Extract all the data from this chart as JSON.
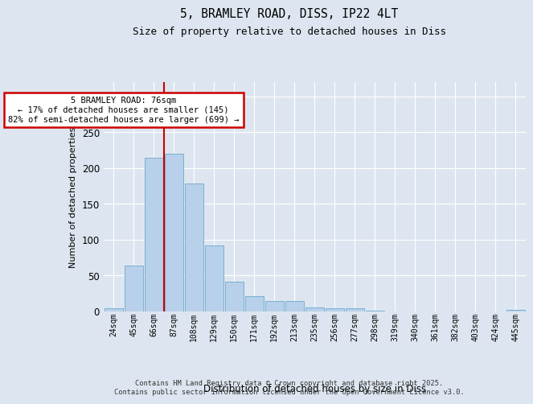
{
  "title1": "5, BRAMLEY ROAD, DISS, IP22 4LT",
  "title2": "Size of property relative to detached houses in Diss",
  "xlabel": "Distribution of detached houses by size in Diss",
  "ylabel": "Number of detached properties",
  "categories": [
    "24sqm",
    "45sqm",
    "66sqm",
    "87sqm",
    "108sqm",
    "129sqm",
    "150sqm",
    "171sqm",
    "192sqm",
    "213sqm",
    "235sqm",
    "256sqm",
    "277sqm",
    "298sqm",
    "319sqm",
    "340sqm",
    "361sqm",
    "382sqm",
    "403sqm",
    "424sqm",
    "445sqm"
  ],
  "values": [
    4,
    64,
    215,
    220,
    179,
    92,
    41,
    21,
    15,
    15,
    6,
    4,
    4,
    1,
    0,
    0,
    0,
    0,
    0,
    0,
    2
  ],
  "bar_color": "#b8d0ea",
  "bar_edge_color": "#7aafd4",
  "ylim": [
    0,
    320
  ],
  "yticks": [
    0,
    50,
    100,
    150,
    200,
    250,
    300
  ],
  "annotation_text": "5 BRAMLEY ROAD: 76sqm\n← 17% of detached houses are smaller (145)\n82% of semi-detached houses are larger (699) →",
  "vline_x_index": 2.5,
  "bg_color": "#dde6f0",
  "plot_bg_color": "#dde6f0",
  "footer1": "Contains HM Land Registry data © Crown copyright and database right 2025.",
  "footer2": "Contains public sector information licensed under the Open Government Licence v3.0.",
  "red_line_color": "#cc0000",
  "annotation_border_color": "#cc0000",
  "grid_color": "#ffffff"
}
